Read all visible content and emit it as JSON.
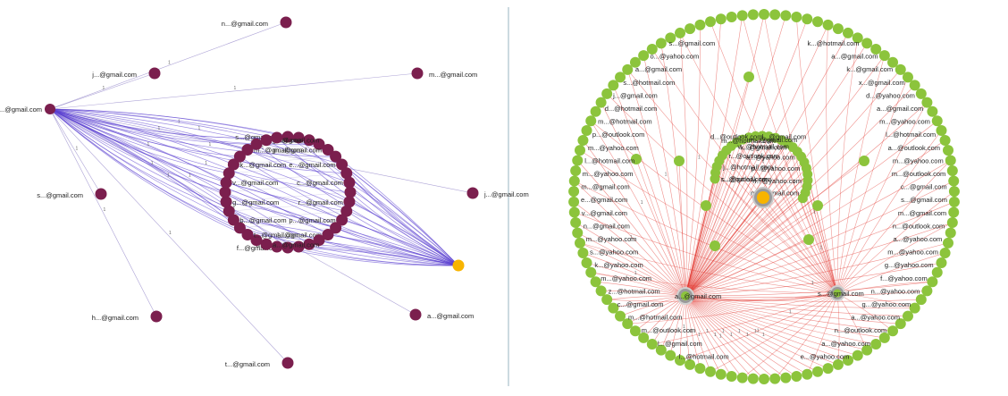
{
  "left_graph": {
    "node_color": "#7b1f4e",
    "edge_color": "#5a3fd0",
    "highlight_color": "#f8b400",
    "hub_label": "f...@gmail.com",
    "outer_nodes": [
      {
        "label": "n...@gmail.com"
      },
      {
        "label": "j...@gmail.com"
      },
      {
        "label": "m...@gmail.com"
      },
      {
        "label": "j...@gmail.com"
      },
      {
        "label": "s...@gmail.com"
      },
      {
        "label": "h...@gmail.com"
      },
      {
        "label": "t...@gmail.com"
      },
      {
        "label": "a...@gmail.com"
      }
    ],
    "ring_labels": [
      "s...@gmail.com",
      "n...@gmail.com",
      "m...@gmail.com",
      "e...@gmail.com",
      "c...@gmail.com",
      "r...@gmail.com",
      "p...@gmail.com",
      "l...@gmail.com",
      "d...@gmail.com",
      "f...@gmail.com",
      "a...@gmail.com",
      "t...@gmail.com",
      "b...@gmail.com",
      "g...@gmail.com",
      "v...@gmail.com",
      "k...@gmail.com",
      "m...@gmail.com",
      "n...@gmail.com",
      "l...@gmail.com",
      "p...@gmail.com"
    ]
  },
  "right_graph": {
    "node_color": "#8cc43c",
    "edge_color": "#e2332c",
    "highlight_color": "#f8b400",
    "hub_labels": [
      "a...@gmail.com",
      "s...@gmail.com"
    ],
    "left_column": [
      "s...@gmail.com",
      "o...@yahoo.com",
      "a...@gmail.com",
      "s...@hotmail.com",
      "j...@gmail.com",
      "d...@hotmail.com",
      "m...@hotmail.com",
      "p...@outlook.com",
      "m...@yahoo.com",
      "l...@hotmail.com",
      "m...@yahoo.com",
      "m...@gmail.com",
      "e...@gmail.com",
      "v...@gmail.com",
      "n...@gmail.com",
      "m...@yahoo.com",
      "s...@yahoo.com",
      "k...@yahoo.com",
      "m...@yahoo.com",
      "z...@hotmail.com",
      "c...@gmail.com",
      "m...@hotmail.com",
      "m...@outlook.com",
      "l...@gmail.com",
      "l...@hotmail.com"
    ],
    "right_column": [
      "k...@hotmail.com",
      "a...@gmail.com",
      "k...@gmail.com",
      "x...@gmail.com",
      "d...@yahoo.com",
      "a...@gmail.com",
      "m...@yahoo.com",
      "l...@hotmail.com",
      "a...@outlook.com",
      "m...@yahoo.com",
      "m...@outlook.com",
      "c...@gmail.com",
      "s...@gmail.com",
      "m...@gmail.com",
      "n...@outlook.com",
      "a...@yahoo.com",
      "m...@yahoo.com",
      "g...@yahoo.com",
      "f...@yahoo.com",
      "n...@yahoo.com",
      "g...@yahoo.com",
      "a...@yahoo.com",
      "n...@outlook.com",
      "a...@yahoo.com",
      "e...@yahoo.com"
    ],
    "inner_labels": [
      "r...@outlook.com",
      "j...@hotmail.com",
      "r...@outlook.com",
      "v...@hotmail.com",
      "m...@gmail.com",
      "l...@gmail.com",
      "d...@outlook.com",
      "m...@hotmail.com",
      "k...@gmail.com",
      "a...@yahoo.com",
      "p...@yahoo.com",
      "n...@yahoo.com",
      "m...@gmail.com",
      "s...@gmail.com"
    ]
  }
}
